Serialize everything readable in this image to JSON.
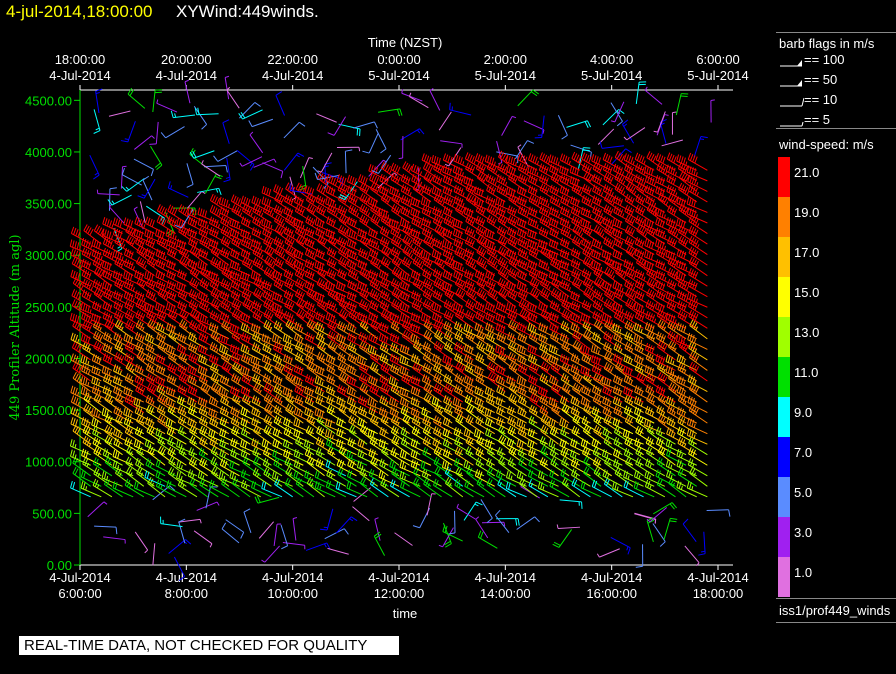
{
  "header": {
    "time": "4-jul-2014,18:00:00",
    "title": "XYWind:449winds."
  },
  "chart_data": {
    "type": "wind-barb time-height",
    "top_axis_title": "Time (NZST)",
    "top_ticks": [
      {
        "t": "18:00:00",
        "d": "4-Jul-2014"
      },
      {
        "t": "20:00:00",
        "d": "4-Jul-2014"
      },
      {
        "t": "22:00:00",
        "d": "4-Jul-2014"
      },
      {
        "t": "0:00:00",
        "d": "5-Jul-2014"
      },
      {
        "t": "2:00:00",
        "d": "5-Jul-2014"
      },
      {
        "t": "4:00:00",
        "d": "5-Jul-2014"
      },
      {
        "t": "6:00:00",
        "d": "5-Jul-2014"
      }
    ],
    "bottom_ticks": [
      {
        "d": "4-Jul-2014",
        "t": "6:00:00"
      },
      {
        "d": "4-Jul-2014",
        "t": "8:00:00"
      },
      {
        "d": "4-Jul-2014",
        "t": "10:00:00"
      },
      {
        "d": "4-Jul-2014",
        "t": "12:00:00"
      },
      {
        "d": "4-Jul-2014",
        "t": "14:00:00"
      },
      {
        "d": "4-Jul-2014",
        "t": "16:00:00"
      },
      {
        "d": "4-Jul-2014",
        "t": "18:00:00"
      }
    ],
    "xlabel": "time",
    "ylabel": "449 Profiler Altitude (m agl)",
    "yticks": [
      "0.00",
      "500.00",
      "1000.00",
      "1500.00",
      "2000.00",
      "2500.00",
      "3000.00",
      "3500.00",
      "4000.00",
      "4500.00"
    ],
    "ylim": [
      0,
      4600
    ],
    "xlim_hours": [
      6,
      18
    ],
    "profile_interval_minutes": 12,
    "gate_spacing_m": 102,
    "first_gate_m": 150,
    "strong_layer": {
      "bottom_m": 600,
      "top_m_start": 3150,
      "top_m_end": 3900,
      "speed_ms": [
        17,
        21
      ],
      "direction_deg": 300
    },
    "light_layer": {
      "speed_ms": [
        1,
        11
      ],
      "direction": "variable"
    }
  },
  "legend": {
    "barb_title": "barb flags in m/s",
    "barbs": [
      {
        "icon": "flag-100",
        "label": "== 100"
      },
      {
        "icon": "flag-50",
        "label": "== 50"
      },
      {
        "icon": "barb-10",
        "label": "== 10"
      },
      {
        "icon": "barb-5",
        "label": "== 5"
      }
    ],
    "speed_title": "wind-speed: m/s",
    "scale": [
      {
        "label": "21.0",
        "color": "#ff0000"
      },
      {
        "label": "19.0",
        "color": "#ff8000"
      },
      {
        "label": "17.0",
        "color": "#ffc000"
      },
      {
        "label": "15.0",
        "color": "#ffff00"
      },
      {
        "label": "13.0",
        "color": "#a0ff00"
      },
      {
        "label": "11.0",
        "color": "#00e000"
      },
      {
        "label": "9.0",
        "color": "#00ffff"
      },
      {
        "label": "7.0",
        "color": "#0000ff"
      },
      {
        "label": "5.0",
        "color": "#5a8cff"
      },
      {
        "label": "3.0",
        "color": "#a020f0"
      },
      {
        "label": "1.0",
        "color": "#e070e0"
      }
    ]
  },
  "source": "iss1/prof449_winds",
  "qa_note": "REAL-TIME DATA, NOT CHECKED FOR QUALITY"
}
